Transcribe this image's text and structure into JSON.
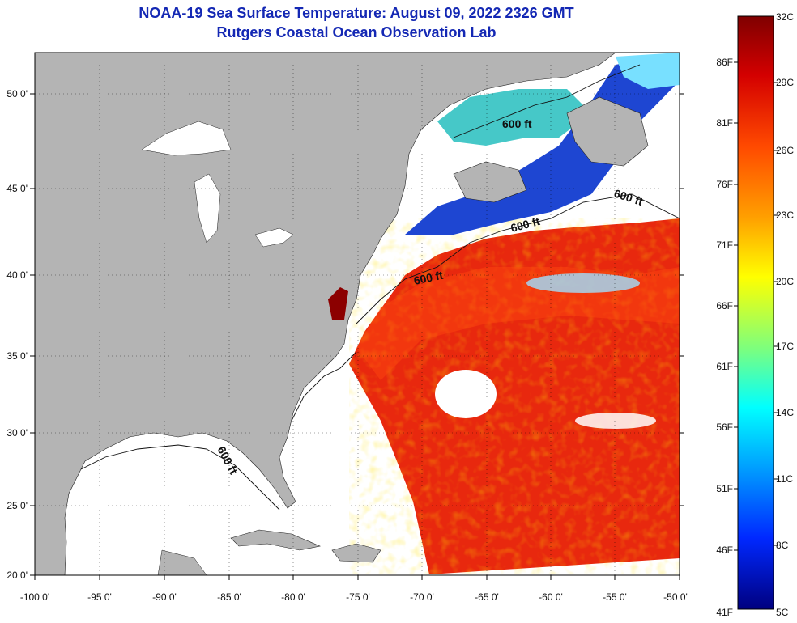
{
  "header": {
    "title": "NOAA-19 Sea Surface Temperature:  August 09, 2022 2326 GMT",
    "subtitle": "Rutgers Coastal Ocean Observation Lab"
  },
  "map": {
    "lon_ticks": [
      "-100 0'",
      "-95 0'",
      "-90 0'",
      "-85 0'",
      "-80 0'",
      "-75 0'",
      "-70 0'",
      "-65 0'",
      "-60 0'",
      "-55 0'",
      "-50 0'"
    ],
    "lat_ticks": [
      "50 0'",
      "45 0'",
      "40 0'",
      "35 0'",
      "30 0'",
      "25 0'",
      "20 0'"
    ],
    "lon_range": [
      -100,
      -50
    ],
    "lat_range": [
      20,
      52.5
    ],
    "land_color": "#b4b4b4",
    "no_data_color": "#ffffff",
    "depth_labels": [
      "600 ft",
      "600 ft",
      "600 ft",
      "600 ft",
      "600 ft"
    ]
  },
  "colorbar": {
    "celsius": [
      "32C",
      "29C",
      "26C",
      "23C",
      "20C",
      "17C",
      "14C",
      "11C",
      "8C",
      "5C"
    ],
    "fahrenheit": [
      "86F",
      "81F",
      "76F",
      "71F",
      "66F",
      "61F",
      "56F",
      "51F",
      "46F",
      "41F"
    ],
    "stops": [
      "#7f0000",
      "#d40000",
      "#ff5a00",
      "#ffb400",
      "#ffff00",
      "#9dff5a",
      "#2effc8",
      "#00b4ff",
      "#0050ff",
      "#0000c8",
      "#00007f"
    ]
  }
}
